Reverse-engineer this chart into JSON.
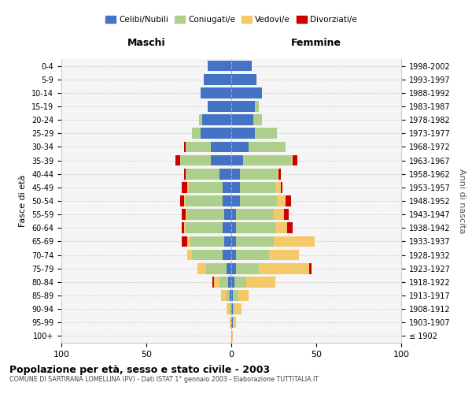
{
  "age_groups": [
    "100+",
    "95-99",
    "90-94",
    "85-89",
    "80-84",
    "75-79",
    "70-74",
    "65-69",
    "60-64",
    "55-59",
    "50-54",
    "45-49",
    "40-44",
    "35-39",
    "30-34",
    "25-29",
    "20-24",
    "15-19",
    "10-14",
    "5-9",
    "0-4"
  ],
  "birth_years": [
    "≤ 1902",
    "1903-1907",
    "1908-1912",
    "1913-1917",
    "1918-1922",
    "1923-1927",
    "1928-1932",
    "1933-1937",
    "1938-1942",
    "1943-1947",
    "1948-1952",
    "1953-1957",
    "1958-1962",
    "1963-1967",
    "1968-1972",
    "1973-1977",
    "1978-1982",
    "1983-1987",
    "1988-1992",
    "1993-1997",
    "1998-2002"
  ],
  "colors": {
    "celibi": "#4472C4",
    "coniugati": "#AECF8B",
    "vedovi": "#F5C869",
    "divorziati": "#CC0000"
  },
  "males": {
    "celibi": [
      0,
      0,
      0,
      1,
      2,
      3,
      5,
      4,
      5,
      4,
      5,
      5,
      7,
      12,
      12,
      18,
      17,
      14,
      18,
      16,
      14
    ],
    "coniugati": [
      0,
      0,
      1,
      2,
      5,
      12,
      18,
      20,
      22,
      22,
      22,
      20,
      20,
      18,
      15,
      5,
      2,
      0,
      0,
      0,
      0
    ],
    "vedovi": [
      0,
      1,
      2,
      3,
      3,
      5,
      3,
      2,
      1,
      1,
      1,
      1,
      0,
      0,
      0,
      0,
      0,
      0,
      0,
      0,
      0
    ],
    "divorziati": [
      0,
      0,
      0,
      0,
      1,
      0,
      0,
      3,
      1,
      2,
      2,
      3,
      1,
      3,
      1,
      0,
      0,
      0,
      0,
      0,
      0
    ]
  },
  "females": {
    "celibi": [
      0,
      1,
      1,
      1,
      2,
      3,
      3,
      3,
      3,
      3,
      5,
      5,
      5,
      7,
      10,
      14,
      13,
      14,
      18,
      15,
      12
    ],
    "coniugati": [
      0,
      0,
      1,
      3,
      7,
      13,
      19,
      22,
      23,
      22,
      22,
      21,
      22,
      28,
      22,
      13,
      5,
      2,
      0,
      0,
      0
    ],
    "vedovi": [
      1,
      2,
      4,
      6,
      17,
      30,
      18,
      24,
      7,
      6,
      5,
      3,
      1,
      1,
      0,
      0,
      0,
      0,
      0,
      0,
      0
    ],
    "divorziati": [
      0,
      0,
      0,
      0,
      0,
      1,
      0,
      0,
      3,
      3,
      3,
      1,
      1,
      3,
      0,
      0,
      0,
      0,
      0,
      0,
      0
    ]
  },
  "xlim": [
    -100,
    100
  ],
  "xticks": [
    -100,
    -50,
    0,
    50,
    100
  ],
  "xticklabels": [
    "100",
    "50",
    "0",
    "50",
    "100"
  ],
  "title": "Popolazione per età, sesso e stato civile - 2003",
  "subtitle": "COMUNE DI SARTIRANA LOMELLINA (PV) - Dati ISTAT 1° gennaio 2003 - Elaborazione TUTTITALIA.IT",
  "ylabel_left": "Fasce di età",
  "ylabel_right": "Anni di nascita",
  "header_left": "Maschi",
  "header_right": "Femmine",
  "legend_labels": [
    "Celibi/Nubili",
    "Coniugati/e",
    "Vedovi/e",
    "Divorziati/e"
  ],
  "bg_color": "#f5f5f5",
  "bar_height": 0.8
}
